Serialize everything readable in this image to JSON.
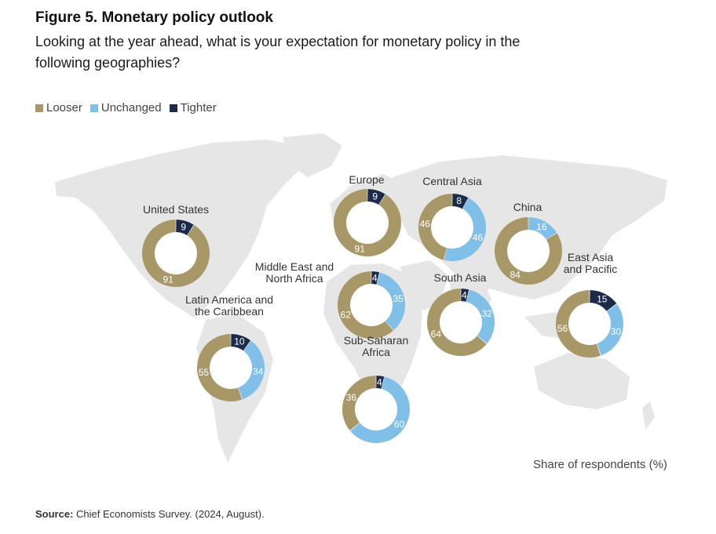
{
  "header": {
    "title": "Figure 5. Monetary policy outlook",
    "subtitle": "Looking at the year ahead, what is your expectation for monetary policy in the following geographies?"
  },
  "colors": {
    "Looser": "#a89868",
    "Unchanged": "#7fbfe8",
    "Tighter": "#1c2b4a",
    "map": "#e6e6e6"
  },
  "note": "Share of respondents (%)",
  "source": {
    "label": "Source:",
    "text": "Chief Economists Survey. (2024, August)."
  },
  "chart_data": {
    "type": "donut",
    "legend": [
      "Looser",
      "Unchanged",
      "Tighter"
    ],
    "legend_position": "top-left",
    "unit": "Share of respondents (%)",
    "regions": [
      {
        "name": "United States",
        "name_lines": [
          "United States"
        ],
        "Looser": 91,
        "Unchanged": 0,
        "Tighter": 9
      },
      {
        "name": "Europe",
        "name_lines": [
          "Europe"
        ],
        "Looser": 91,
        "Unchanged": 0,
        "Tighter": 9
      },
      {
        "name": "Central Asia",
        "name_lines": [
          "Central Asia"
        ],
        "Looser": 46,
        "Unchanged": 46,
        "Tighter": 8
      },
      {
        "name": "China",
        "name_lines": [
          "China"
        ],
        "Looser": 84,
        "Unchanged": 16,
        "Tighter": 0
      },
      {
        "name": "Middle East and North Africa",
        "name_lines": [
          "Middle East and",
          "North Africa"
        ],
        "Looser": 62,
        "Unchanged": 35,
        "Tighter": 4
      },
      {
        "name": "South Asia",
        "name_lines": [
          "South Asia"
        ],
        "Looser": 64,
        "Unchanged": 32,
        "Tighter": 4
      },
      {
        "name": "East Asia and Pacific",
        "name_lines": [
          "East Asia",
          "and Pacific"
        ],
        "Looser": 56,
        "Unchanged": 30,
        "Tighter": 15
      },
      {
        "name": "Latin America and the Caribbean",
        "name_lines": [
          "Latin America and",
          "the Caribbean"
        ],
        "Looser": 55,
        "Unchanged": 34,
        "Tighter": 10
      },
      {
        "name": "Sub-Saharan Africa",
        "name_lines": [
          "Sub-Saharan",
          "Africa"
        ],
        "Looser": 36,
        "Unchanged": 60,
        "Tighter": 4
      }
    ]
  }
}
